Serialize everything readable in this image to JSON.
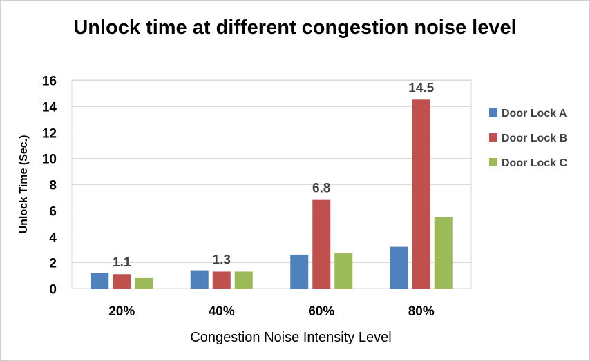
{
  "chart_data": {
    "type": "bar",
    "title": "Unlock time at different congestion noise level",
    "xlabel": "Congestion Noise Intensity Level",
    "ylabel": "Unlock Time (Sec.)",
    "categories": [
      "20%",
      "40%",
      "60%",
      "80%"
    ],
    "ylim": [
      0,
      16
    ],
    "yticks": [
      0,
      2,
      4,
      6,
      8,
      10,
      12,
      14,
      16
    ],
    "grid": true,
    "legend_position": "right",
    "series": [
      {
        "name": "Door Lock A",
        "color": "#4F81BD",
        "values": [
          1.2,
          1.4,
          2.6,
          3.2
        ]
      },
      {
        "name": "Door Lock B",
        "color": "#C0504D",
        "values": [
          1.1,
          1.3,
          6.8,
          14.5
        ]
      },
      {
        "name": "Door Lock C",
        "color": "#9BBB59",
        "values": [
          0.8,
          1.3,
          2.7,
          5.5
        ]
      }
    ],
    "data_labels": [
      {
        "series": "Door Lock B",
        "category": "20%",
        "text": "1.1"
      },
      {
        "series": "Door Lock B",
        "category": "40%",
        "text": "1.3"
      },
      {
        "series": "Door Lock B",
        "category": "60%",
        "text": "6.8"
      },
      {
        "series": "Door Lock B",
        "category": "80%",
        "text": "14.5"
      }
    ]
  }
}
